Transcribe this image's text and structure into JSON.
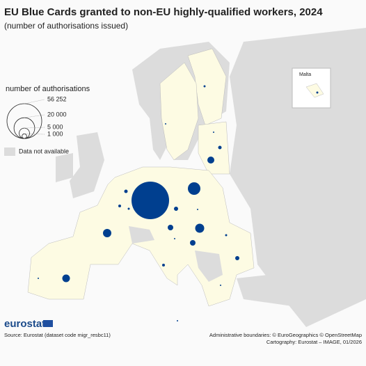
{
  "header": {
    "title": "EU Blue Cards granted to non-EU highly-qualified workers, 2024",
    "subtitle": "(number of authorisations issued)"
  },
  "legend": {
    "title": "number of authorisations",
    "values": [
      56252,
      20000,
      5000,
      1000
    ],
    "value_labels": [
      "56 252",
      "20 000",
      "5 000",
      "1 000"
    ],
    "no_data": "Data not available"
  },
  "map": {
    "bubble_values": [
      56252,
      6250,
      1930,
      480,
      80,
      2780,
      2330,
      80,
      480,
      310,
      170,
      1230,
      690,
      80,
      3260,
      80,
      1230,
      170,
      690,
      310,
      80,
      80,
      170,
      80,
      170
    ],
    "color": "#003f8f",
    "inset_label": "Malta"
  },
  "footer": {
    "logo": "eurostat",
    "source": "Source: Eurostat (dataset code migr_resbc11)",
    "boundaries": "Administrative boundaries: © EuroGeographics © OpenStreetMap",
    "cartography": "Cartography: Eurostat – IMAGE, 01/2026"
  }
}
